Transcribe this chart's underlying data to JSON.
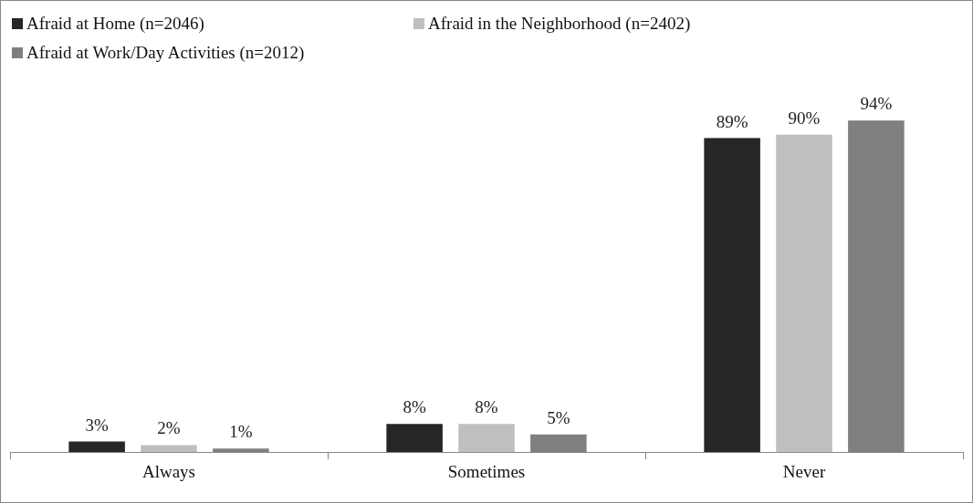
{
  "chart_data": {
    "type": "bar",
    "categories": [
      "Always",
      "Sometimes",
      "Never"
    ],
    "series": [
      {
        "name": "Afraid at Home (n=2046)",
        "color": "#262626",
        "values": [
          3,
          8,
          89
        ],
        "value_labels": [
          "3%",
          "8%",
          "89%"
        ]
      },
      {
        "name": "Afraid in the Neighborhood (n=2402)",
        "color": "#bfbfbf",
        "values": [
          2,
          8,
          90
        ],
        "value_labels": [
          "2%",
          "8%",
          "90%"
        ]
      },
      {
        "name": "Afraid at Work/Day Activities (n=2012)",
        "color": "#7f7f7f",
        "values": [
          1,
          5,
          94
        ],
        "value_labels": [
          "1%",
          "5%",
          "94%"
        ]
      }
    ],
    "legend": "top left",
    "grid": false
  }
}
